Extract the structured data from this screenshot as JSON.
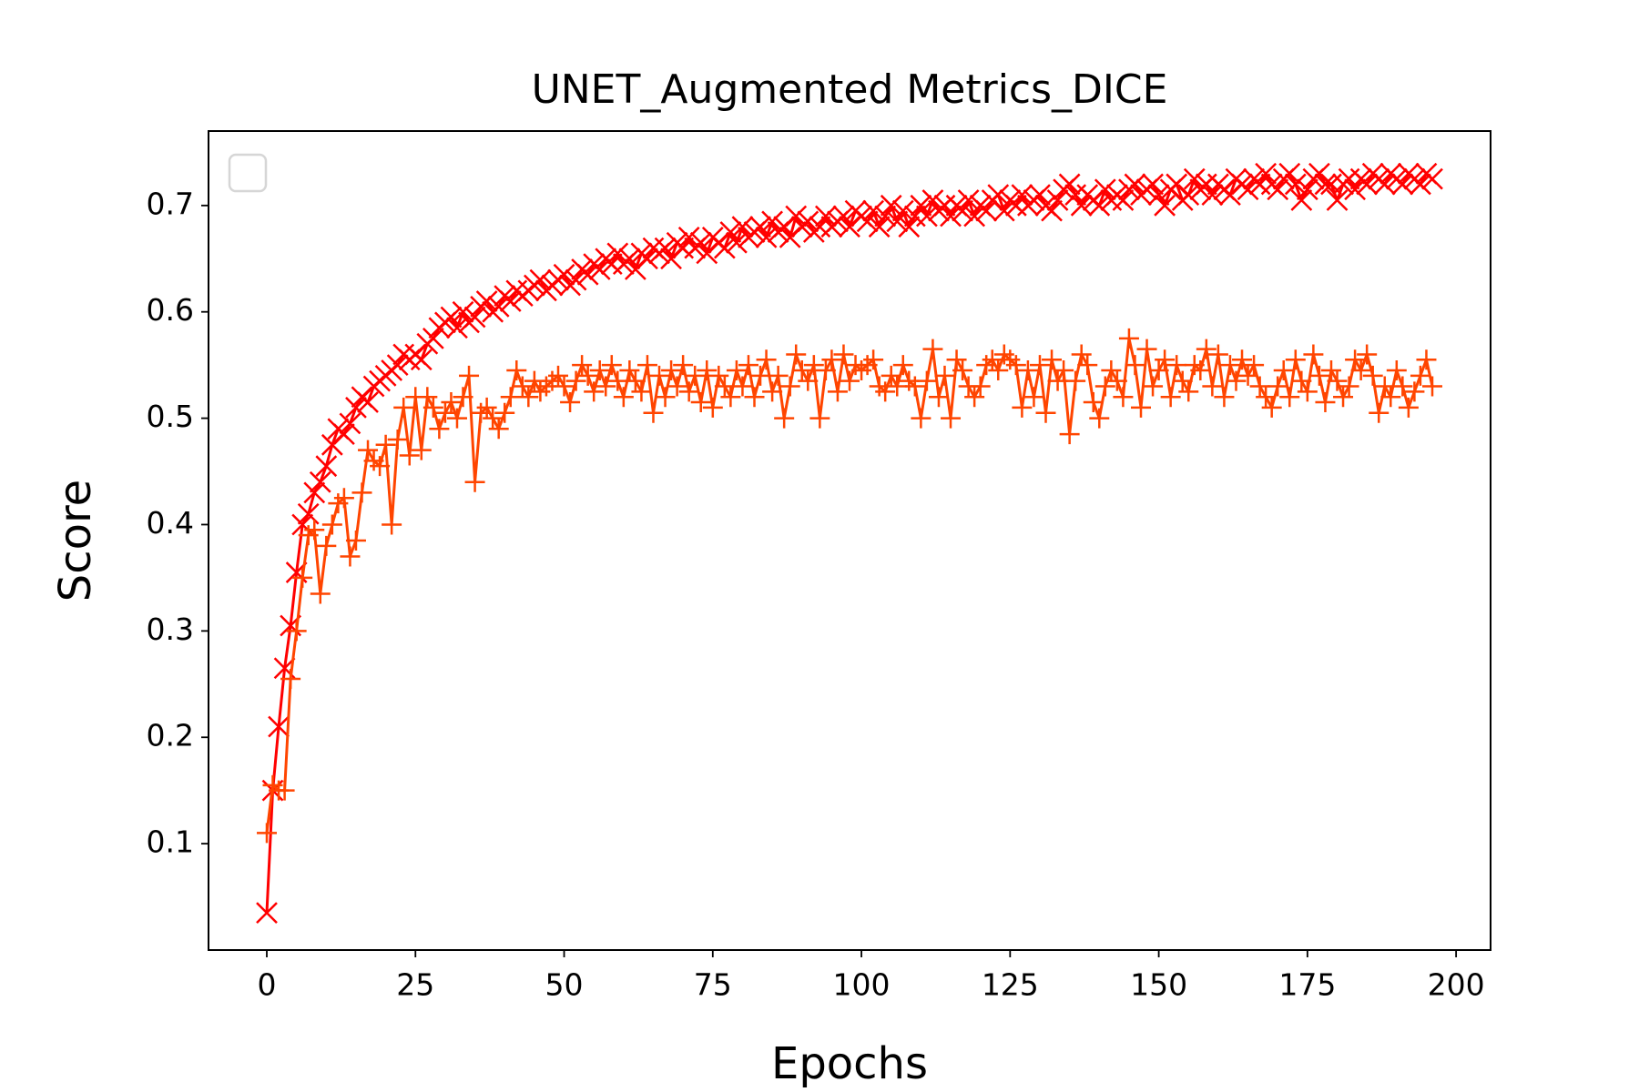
{
  "chart_data": {
    "type": "line",
    "title": "UNET_Augmented Metrics_DICE",
    "xlabel": "Epochs",
    "ylabel": "Score",
    "x": [
      0,
      1,
      2,
      3,
      4,
      5,
      6,
      7,
      8,
      9,
      10,
      11,
      12,
      13,
      14,
      15,
      16,
      17,
      18,
      19,
      20,
      21,
      22,
      23,
      24,
      25,
      26,
      27,
      28,
      29,
      30,
      31,
      32,
      33,
      34,
      35,
      36,
      37,
      38,
      39,
      40,
      41,
      42,
      43,
      44,
      45,
      46,
      47,
      48,
      49,
      50,
      51,
      52,
      53,
      54,
      55,
      56,
      57,
      58,
      59,
      60,
      61,
      62,
      63,
      64,
      65,
      66,
      67,
      68,
      69,
      70,
      71,
      72,
      73,
      74,
      75,
      76,
      77,
      78,
      79,
      80,
      81,
      82,
      83,
      84,
      85,
      86,
      87,
      88,
      89,
      90,
      91,
      92,
      93,
      94,
      95,
      96,
      97,
      98,
      99,
      100,
      101,
      102,
      103,
      104,
      105,
      106,
      107,
      108,
      109,
      110,
      111,
      112,
      113,
      114,
      115,
      116,
      117,
      118,
      119,
      120,
      121,
      122,
      123,
      124,
      125,
      126,
      127,
      128,
      129,
      130,
      131,
      132,
      133,
      134,
      135,
      136,
      137,
      138,
      139,
      140,
      141,
      142,
      143,
      144,
      145,
      146,
      147,
      148,
      149,
      150,
      151,
      152,
      153,
      154,
      155,
      156,
      157,
      158,
      159,
      160,
      161,
      162,
      163,
      164,
      165,
      166,
      167,
      168,
      169,
      170,
      171,
      172,
      173,
      174,
      175,
      176,
      177,
      178,
      179,
      180,
      181,
      182,
      183,
      184,
      185,
      186,
      187,
      188,
      189,
      190,
      191,
      192,
      193,
      194,
      195,
      196
    ],
    "series": [
      {
        "color": "#ff0000",
        "marker": "x",
        "values": [
          0.035,
          0.15,
          0.21,
          0.265,
          0.305,
          0.355,
          0.4,
          0.41,
          0.43,
          0.44,
          0.455,
          0.475,
          0.49,
          0.485,
          0.495,
          0.51,
          0.52,
          0.515,
          0.53,
          0.535,
          0.54,
          0.545,
          0.55,
          0.56,
          0.555,
          0.56,
          0.555,
          0.57,
          0.575,
          0.585,
          0.59,
          0.595,
          0.585,
          0.6,
          0.59,
          0.595,
          0.605,
          0.61,
          0.6,
          0.605,
          0.615,
          0.61,
          0.62,
          0.615,
          0.62,
          0.625,
          0.63,
          0.62,
          0.625,
          0.63,
          0.635,
          0.625,
          0.63,
          0.64,
          0.635,
          0.645,
          0.64,
          0.65,
          0.645,
          0.655,
          0.645,
          0.65,
          0.64,
          0.655,
          0.65,
          0.66,
          0.655,
          0.66,
          0.65,
          0.665,
          0.66,
          0.67,
          0.66,
          0.665,
          0.655,
          0.67,
          0.665,
          0.66,
          0.675,
          0.665,
          0.68,
          0.67,
          0.675,
          0.68,
          0.67,
          0.685,
          0.675,
          0.68,
          0.67,
          0.69,
          0.68,
          0.685,
          0.675,
          0.68,
          0.69,
          0.68,
          0.685,
          0.69,
          0.68,
          0.695,
          0.69,
          0.685,
          0.695,
          0.68,
          0.69,
          0.7,
          0.685,
          0.695,
          0.68,
          0.69,
          0.7,
          0.69,
          0.705,
          0.695,
          0.7,
          0.69,
          0.7,
          0.695,
          0.705,
          0.69,
          0.7,
          0.695,
          0.705,
          0.71,
          0.695,
          0.705,
          0.7,
          0.71,
          0.7,
          0.705,
          0.71,
          0.7,
          0.695,
          0.705,
          0.715,
          0.72,
          0.71,
          0.7,
          0.71,
          0.705,
          0.7,
          0.715,
          0.705,
          0.71,
          0.705,
          0.715,
          0.72,
          0.71,
          0.715,
          0.72,
          0.71,
          0.7,
          0.715,
          0.72,
          0.705,
          0.71,
          0.725,
          0.715,
          0.72,
          0.71,
          0.72,
          0.715,
          0.71,
          0.725,
          0.72,
          0.715,
          0.725,
          0.72,
          0.73,
          0.72,
          0.715,
          0.725,
          0.73,
          0.72,
          0.705,
          0.715,
          0.725,
          0.73,
          0.72,
          0.72,
          0.705,
          0.72,
          0.725,
          0.715,
          0.725,
          0.72,
          0.73,
          0.725,
          0.72,
          0.73,
          0.725,
          0.72,
          0.73,
          0.725,
          0.72,
          0.73,
          0.725
        ]
      },
      {
        "color": "#ff4500",
        "marker": "+",
        "values": [
          0.11,
          0.155,
          0.15,
          0.15,
          0.255,
          0.3,
          0.35,
          0.39,
          0.395,
          0.335,
          0.38,
          0.4,
          0.42,
          0.425,
          0.37,
          0.385,
          0.43,
          0.47,
          0.46,
          0.455,
          0.475,
          0.4,
          0.48,
          0.51,
          0.465,
          0.52,
          0.47,
          0.52,
          0.51,
          0.49,
          0.505,
          0.515,
          0.5,
          0.52,
          0.54,
          0.44,
          0.505,
          0.51,
          0.5,
          0.49,
          0.505,
          0.52,
          0.545,
          0.53,
          0.52,
          0.535,
          0.525,
          0.53,
          0.535,
          0.54,
          0.53,
          0.515,
          0.535,
          0.55,
          0.54,
          0.525,
          0.545,
          0.53,
          0.55,
          0.535,
          0.52,
          0.545,
          0.535,
          0.525,
          0.55,
          0.505,
          0.54,
          0.52,
          0.545,
          0.53,
          0.55,
          0.525,
          0.54,
          0.515,
          0.545,
          0.51,
          0.54,
          0.53,
          0.52,
          0.545,
          0.53,
          0.55,
          0.52,
          0.54,
          0.555,
          0.525,
          0.54,
          0.5,
          0.53,
          0.56,
          0.545,
          0.535,
          0.55,
          0.5,
          0.545,
          0.555,
          0.525,
          0.56,
          0.535,
          0.55,
          0.545,
          0.55,
          0.555,
          0.53,
          0.525,
          0.54,
          0.53,
          0.55,
          0.535,
          0.53,
          0.5,
          0.535,
          0.565,
          0.52,
          0.54,
          0.5,
          0.555,
          0.545,
          0.53,
          0.52,
          0.53,
          0.55,
          0.555,
          0.545,
          0.56,
          0.555,
          0.55,
          0.51,
          0.545,
          0.52,
          0.55,
          0.505,
          0.555,
          0.535,
          0.545,
          0.485,
          0.535,
          0.56,
          0.55,
          0.515,
          0.5,
          0.53,
          0.545,
          0.535,
          0.52,
          0.575,
          0.55,
          0.51,
          0.565,
          0.53,
          0.545,
          0.555,
          0.52,
          0.55,
          0.535,
          0.525,
          0.55,
          0.545,
          0.565,
          0.53,
          0.56,
          0.52,
          0.55,
          0.535,
          0.555,
          0.54,
          0.55,
          0.53,
          0.52,
          0.51,
          0.53,
          0.545,
          0.52,
          0.555,
          0.535,
          0.525,
          0.56,
          0.54,
          0.515,
          0.545,
          0.535,
          0.52,
          0.53,
          0.555,
          0.545,
          0.56,
          0.54,
          0.505,
          0.53,
          0.52,
          0.545,
          0.53,
          0.51,
          0.525,
          0.54,
          0.555,
          0.53
        ]
      }
    ],
    "xlim": [
      -9.8,
      205.8
    ],
    "ylim": [
      0.0,
      0.77
    ],
    "xticks": [
      0,
      25,
      50,
      75,
      100,
      125,
      150,
      175,
      200
    ],
    "yticks": [
      0.1,
      0.2,
      0.3,
      0.4,
      0.5,
      0.6,
      0.7
    ]
  }
}
